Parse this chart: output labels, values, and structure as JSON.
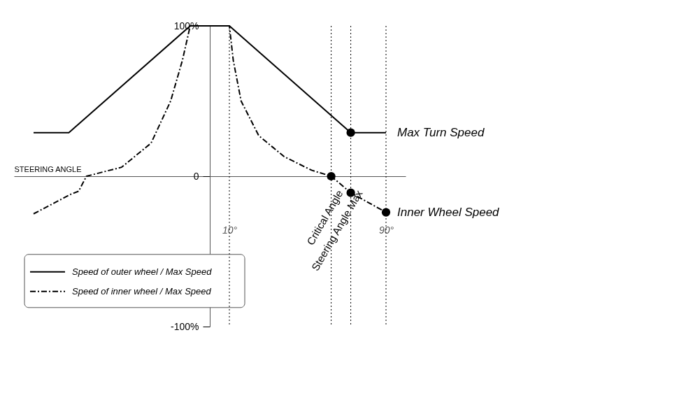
{
  "chart_data": {
    "type": "line",
    "xlabel": "STEERING ANGLE",
    "xlim": [
      -100,
      100
    ],
    "xticks": [
      {
        "value": 10,
        "label": "10°"
      },
      {
        "value": 90,
        "label": "90°"
      }
    ],
    "ylim": [
      -100,
      100
    ],
    "yticks": [
      {
        "value": 100,
        "label": "100%"
      },
      0,
      {
        "value": -100,
        "label": "-100%"
      }
    ],
    "grid": false,
    "legend": "bottom left",
    "series": [
      {
        "name": "Speed of outer wheel / Max Speed",
        "color": "#000000",
        "line_style": "solid",
        "x": [
          -90,
          -72,
          -10,
          10,
          72,
          90
        ],
        "values": [
          29,
          29,
          100,
          100,
          29,
          29
        ]
      },
      {
        "name": "Speed of inner wheel / Max Speed",
        "color": "#000000",
        "line_style": "dashed",
        "x": [
          -90,
          -71,
          -67,
          -63,
          -45,
          -30,
          -20,
          -14,
          -10,
          10,
          12,
          16,
          25,
          38,
          52,
          62,
          72,
          90
        ],
        "values": [
          -25,
          -12,
          -10,
          0,
          6,
          22,
          50,
          77,
          100,
          100,
          77,
          50,
          27,
          13,
          4,
          0,
          -11,
          -24
        ]
      },
      {
        "type": "scatter",
        "color": "#000000",
        "marker": "circle",
        "x": [
          72,
          62,
          72,
          90
        ],
        "values": [
          29,
          0,
          -11,
          -24
        ]
      }
    ],
    "ref_lines": [
      {
        "axis": "x",
        "value": 10,
        "line_style": "dotted",
        "color": "#000000"
      },
      {
        "axis": "x",
        "value": 62,
        "label": "Critical Angle",
        "line_style": "dotted",
        "color": "#000000"
      },
      {
        "axis": "x",
        "value": 72,
        "label": "Steering Angle Max",
        "line_style": "dotted",
        "color": "#000000"
      },
      {
        "axis": "x",
        "value": 90,
        "line_style": "dotted",
        "color": "#000000"
      }
    ],
    "annotations": [
      {
        "text": "Max Turn Speed",
        "x": 90,
        "y": 29
      },
      {
        "text": "Inner Wheel Speed",
        "x": 90,
        "y": -24
      }
    ]
  }
}
